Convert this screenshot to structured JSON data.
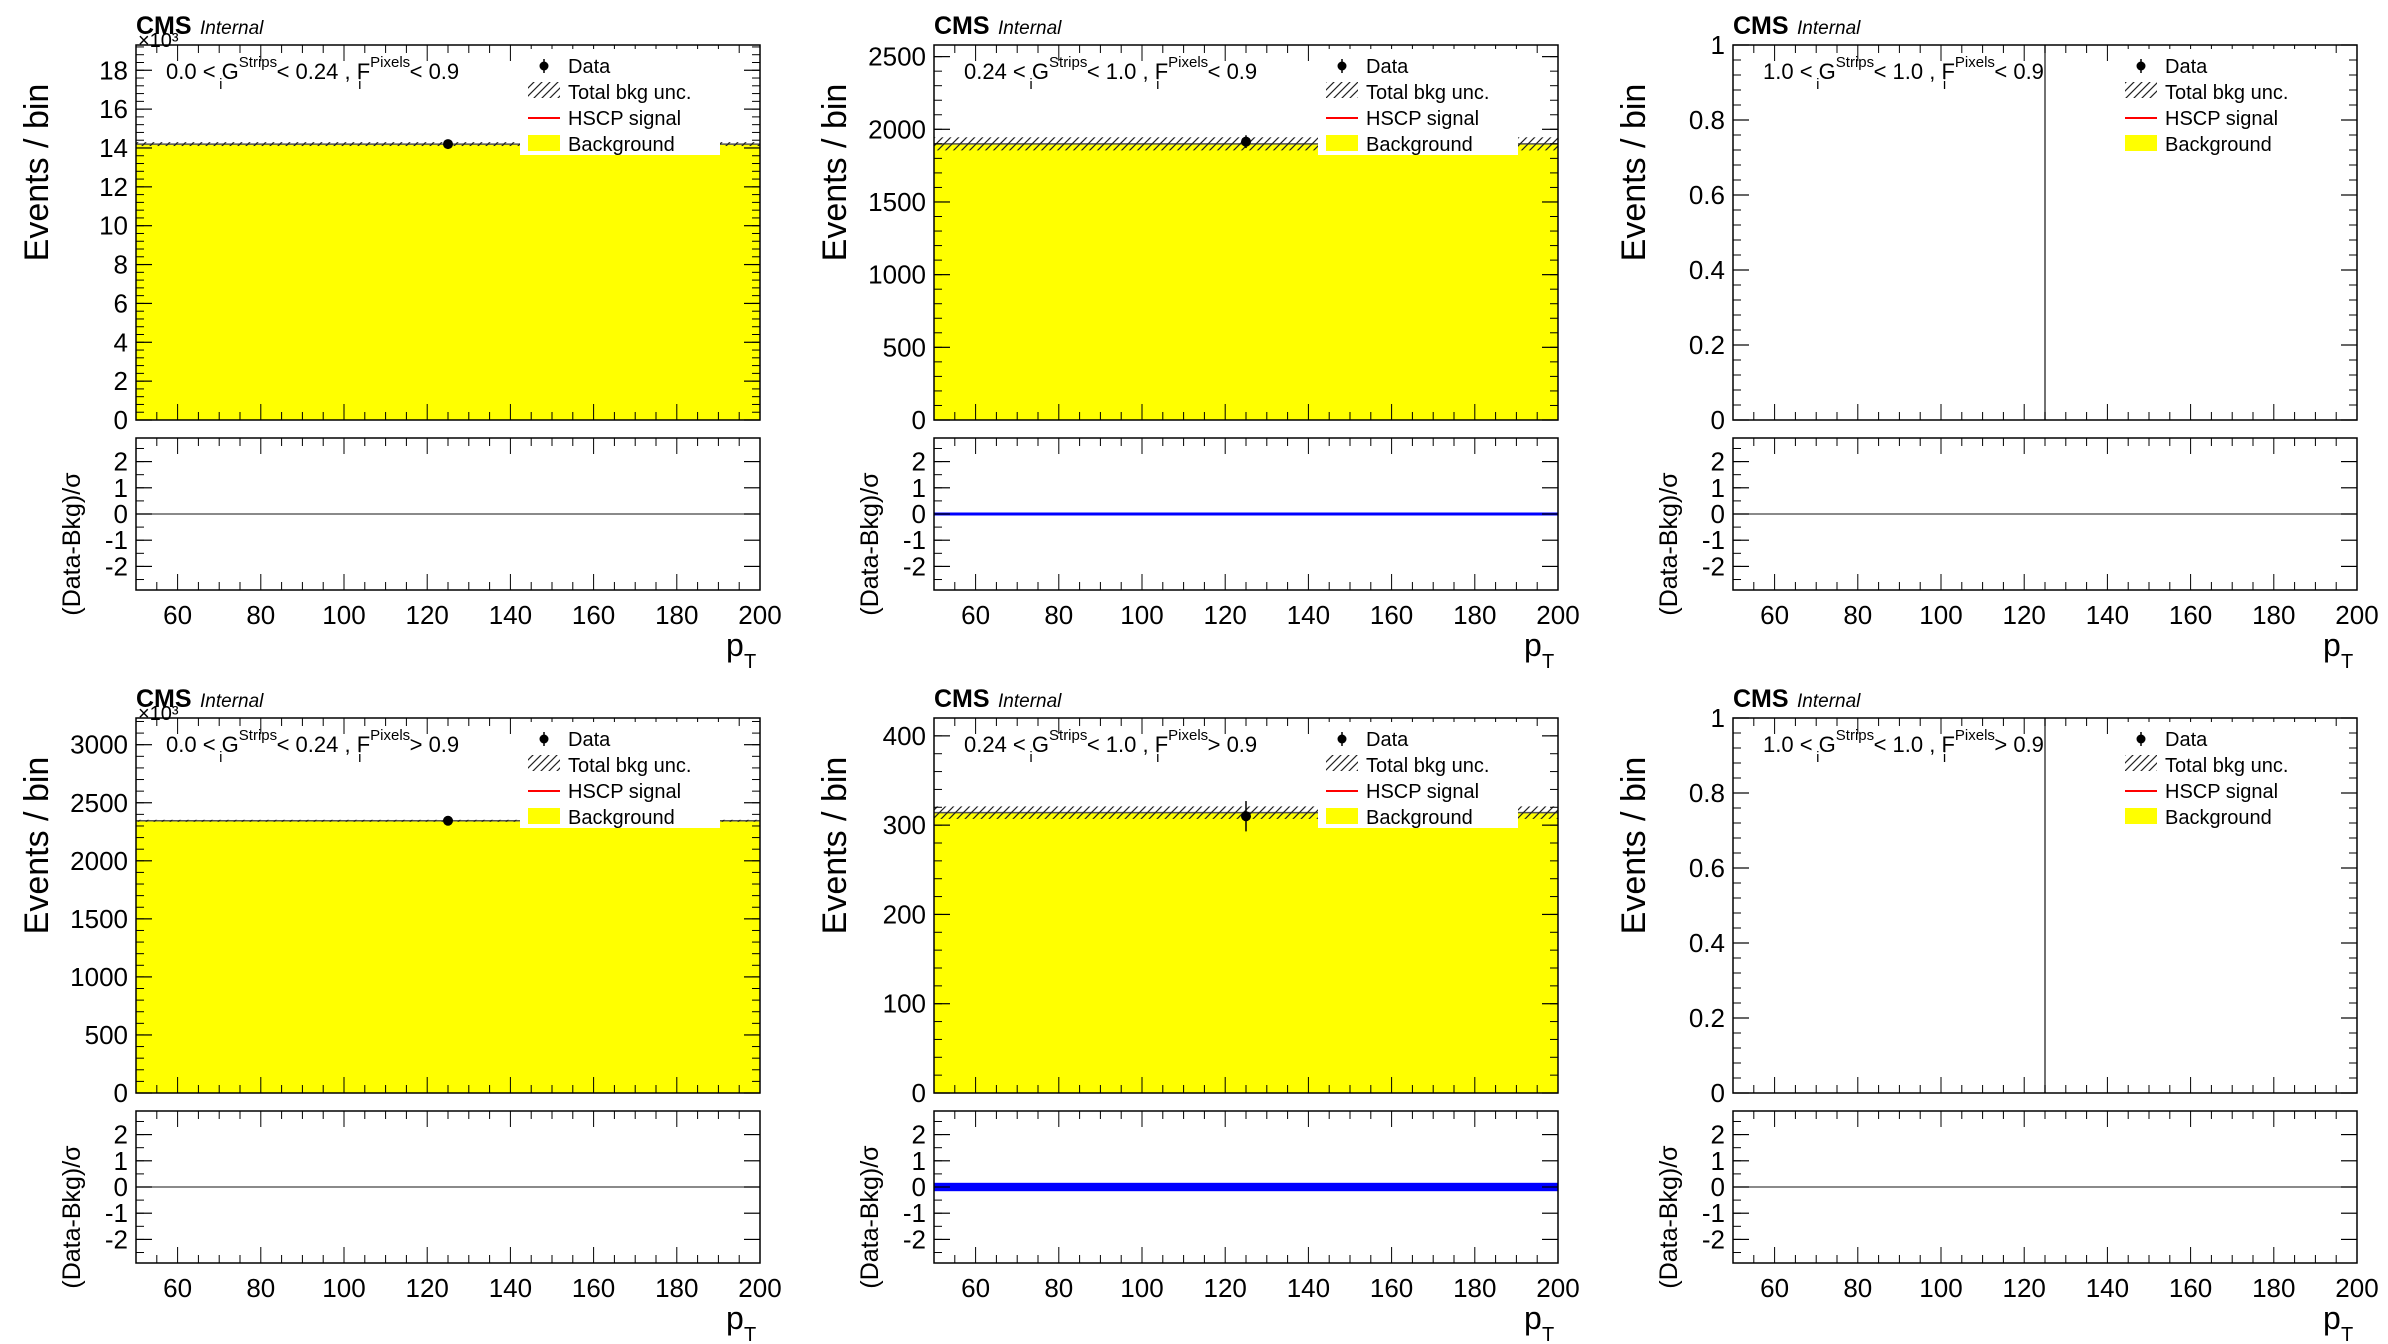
{
  "common": {
    "cms_label": "CMS",
    "internal_label": "Internal",
    "ylabel_main": "Events / bin",
    "ylabel_ratio": "(Data-Bkg)/σ",
    "xlabel": "p",
    "xlabel_sub": "T",
    "xticks": [
      60,
      80,
      100,
      120,
      140,
      160,
      180,
      200
    ],
    "ratio_yticks": [
      -2,
      -1,
      0,
      1,
      2
    ],
    "legend": [
      "Data",
      "Total bkg unc.",
      "HSCP signal",
      "Background"
    ],
    "colors": {
      "background_fill": "#ffff00",
      "signal": "#ff0000",
      "pull": "#0000ff",
      "data": "#000000"
    }
  },
  "chart_data": [
    {
      "type": "bar",
      "region": [
        "0.0 < G",
        "Strips",
        "i",
        " < 0.24 , F",
        "Pixels",
        "i",
        " < 0.9"
      ],
      "multiplier": "×10³",
      "xlim": [
        50,
        200
      ],
      "ylim": [
        0,
        19.3
      ],
      "yticks": [
        0,
        2,
        4,
        6,
        8,
        10,
        12,
        14,
        16,
        18
      ],
      "background_bins": [
        {
          "x": [
            50,
            200
          ],
          "value": 14.2
        }
      ],
      "bkg_unc": 0.1,
      "data_points": [
        {
          "x": 125,
          "y": 14.2,
          "err": 0.12
        }
      ],
      "pull_band": 0,
      "ratio_ylim": [
        -2.9,
        2.9
      ]
    },
    {
      "type": "bar",
      "region": [
        "0.24 < G",
        "Strips",
        "i",
        " < 1.0 , F",
        "Pixels",
        "i",
        " < 0.9"
      ],
      "multiplier": "",
      "xlim": [
        50,
        200
      ],
      "ylim": [
        0,
        2580
      ],
      "yticks": [
        0,
        500,
        1000,
        1500,
        2000,
        2500
      ],
      "background_bins": [
        {
          "x": [
            50,
            200
          ],
          "value": 1900
        }
      ],
      "bkg_unc": 45,
      "data_points": [
        {
          "x": 125,
          "y": 1915,
          "err": 44
        }
      ],
      "pull_band": 0.08,
      "ratio_ylim": [
        -2.9,
        2.9
      ]
    },
    {
      "type": "bar",
      "region": [
        "1.0 < G",
        "Strips",
        "i",
        " < 1.0 , F",
        "Pixels",
        "i",
        " < 0.9"
      ],
      "multiplier": "",
      "xlim": [
        50,
        200
      ],
      "ylim": [
        0,
        1
      ],
      "yticks": [
        0,
        0.2,
        0.4,
        0.6,
        0.8,
        1
      ],
      "background_bins": [],
      "bkg_unc": 0,
      "data_points": [],
      "vertical_line_x": 125,
      "pull_band": 0,
      "ratio_ylim": [
        -2.9,
        2.9
      ]
    },
    {
      "type": "bar",
      "region": [
        "0.0 < G",
        "Strips",
        "i",
        " < 0.24 , F",
        "Pixels",
        "i",
        " > 0.9"
      ],
      "multiplier": "×10³",
      "xlim": [
        50,
        200
      ],
      "ylim": [
        0,
        3230
      ],
      "yticks": [
        0,
        500,
        1000,
        1500,
        2000,
        2500,
        3000
      ],
      "background_bins": [
        {
          "x": [
            50,
            200
          ],
          "value": 2345
        }
      ],
      "bkg_unc": 8,
      "data_points": [
        {
          "x": 125,
          "y": 2345,
          "err": 15
        }
      ],
      "pull_band": 0,
      "ratio_ylim": [
        -2.9,
        2.9
      ]
    },
    {
      "type": "bar",
      "region": [
        "0.24 < G",
        "Strips",
        "i",
        " < 1.0 , F",
        "Pixels",
        "i",
        " > 0.9"
      ],
      "multiplier": "",
      "xlim": [
        50,
        200
      ],
      "ylim": [
        0,
        420
      ],
      "yticks": [
        0,
        100,
        200,
        300,
        400
      ],
      "background_bins": [
        {
          "x": [
            50,
            200
          ],
          "value": 314
        }
      ],
      "bkg_unc": 7,
      "data_points": [
        {
          "x": 125,
          "y": 310,
          "err": 17
        }
      ],
      "pull_band": 0.32,
      "ratio_ylim": [
        -2.9,
        2.9
      ]
    },
    {
      "type": "bar",
      "region": [
        "1.0 < G",
        "Strips",
        "i",
        " < 1.0 , F",
        "Pixels",
        "i",
        " > 0.9"
      ],
      "multiplier": "",
      "xlim": [
        50,
        200
      ],
      "ylim": [
        0,
        1
      ],
      "yticks": [
        0,
        0.2,
        0.4,
        0.6,
        0.8,
        1
      ],
      "background_bins": [],
      "bkg_unc": 0,
      "data_points": [],
      "vertical_line_x": 125,
      "pull_band": 0,
      "ratio_ylim": [
        -2.9,
        2.9
      ]
    }
  ]
}
